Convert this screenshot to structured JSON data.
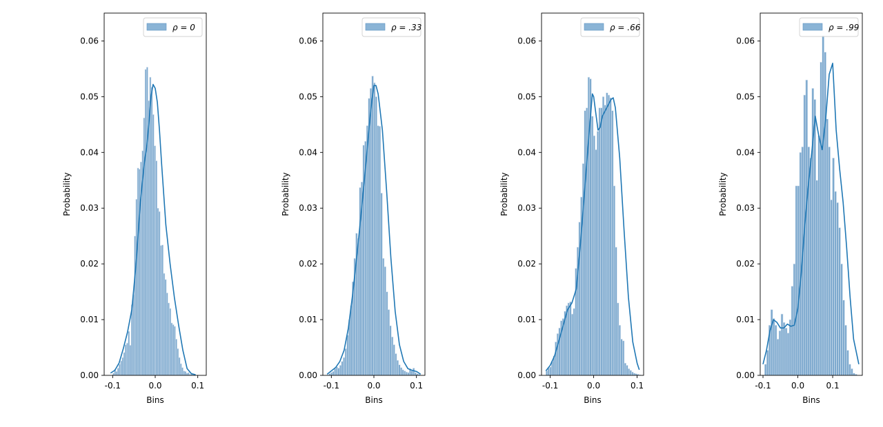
{
  "colors": {
    "bar_fill": "#5d93c2",
    "bar_edge": "#dbe7f2",
    "kde": "#1f77b4",
    "legend_patch": "#8ab4d6",
    "axes": "#000000"
  },
  "chart_data": [
    {
      "type": "bar",
      "legend": "ρ = 0",
      "xlabel": "Bins",
      "ylabel": "Probability",
      "xlim": [
        -0.12,
        0.12
      ],
      "ylim": [
        0,
        0.065
      ],
      "xticks": [
        "-0.1",
        "0.0",
        "0.1"
      ],
      "xtick_values": [
        -0.1,
        0.0,
        0.1
      ],
      "yticks": [
        "0.00",
        "0.01",
        "0.02",
        "0.03",
        "0.04",
        "0.05",
        "0.06"
      ],
      "ytick_values": [
        0,
        0.01,
        0.02,
        0.03,
        0.04,
        0.05,
        0.06
      ],
      "bar_width": 0.0036,
      "bin_centers": [
        -0.098,
        -0.0944,
        -0.0908,
        -0.0872,
        -0.0836,
        -0.08,
        -0.0764,
        -0.0728,
        -0.0692,
        -0.0656,
        -0.062,
        -0.0584,
        -0.0548,
        -0.0512,
        -0.0476,
        -0.044,
        -0.0404,
        -0.0368,
        -0.0332,
        -0.0296,
        -0.026,
        -0.0224,
        -0.0188,
        -0.0152,
        -0.0116,
        -0.008,
        -0.0044,
        -0.0008,
        0.0028,
        0.0064,
        0.01,
        0.0136,
        0.0172,
        0.0208,
        0.0244,
        0.028,
        0.0316,
        0.0352,
        0.0388,
        0.0424,
        0.046,
        0.0496,
        0.0532,
        0.0568,
        0.0604,
        0.064,
        0.0676,
        0.0712,
        0.0748,
        0.0784,
        0.082,
        0.0856,
        0.0892
      ],
      "values": [
        0.0004,
        0.0011,
        0.0007,
        0.0013,
        0.002,
        0.0026,
        0.0032,
        0.0041,
        0.0055,
        0.0058,
        0.0079,
        0.0054,
        0.0127,
        0.0145,
        0.025,
        0.0316,
        0.0372,
        0.037,
        0.0383,
        0.0403,
        0.0462,
        0.0549,
        0.0553,
        0.0493,
        0.0535,
        0.0517,
        0.0468,
        0.0412,
        0.0385,
        0.03,
        0.0294,
        0.0233,
        0.0234,
        0.0183,
        0.0172,
        0.0148,
        0.013,
        0.012,
        0.0094,
        0.0091,
        0.0088,
        0.0065,
        0.0048,
        0.0032,
        0.0021,
        0.0014,
        0.0008,
        0.0007,
        0.0004,
        0.0005,
        0.0002,
        0.0002,
        0.0001
      ],
      "kde_x": [
        -0.105,
        -0.095,
        -0.085,
        -0.075,
        -0.065,
        -0.055,
        -0.045,
        -0.035,
        -0.025,
        -0.02,
        -0.015,
        -0.01,
        -0.005,
        0.0,
        0.005,
        0.01,
        0.015,
        0.025,
        0.035,
        0.045,
        0.055,
        0.065,
        0.075,
        0.085,
        0.095
      ],
      "kde_y": [
        0.0004,
        0.0009,
        0.0022,
        0.0048,
        0.0078,
        0.0118,
        0.02,
        0.031,
        0.0385,
        0.041,
        0.045,
        0.05,
        0.0522,
        0.0515,
        0.049,
        0.044,
        0.038,
        0.027,
        0.02,
        0.014,
        0.009,
        0.0045,
        0.0012,
        0.0003,
        0.0001
      ]
    },
    {
      "type": "bar",
      "legend": "ρ = .33",
      "xlabel": "Bins",
      "ylabel": "Probability",
      "xlim": [
        -0.12,
        0.12
      ],
      "ylim": [
        0,
        0.065
      ],
      "xticks": [
        "-0.1",
        "0.0",
        "0.1"
      ],
      "xtick_values": [
        -0.1,
        0.0,
        0.1
      ],
      "yticks": [
        "0.00",
        "0.01",
        "0.02",
        "0.03",
        "0.04",
        "0.05",
        "0.06"
      ],
      "ytick_values": [
        0,
        0.01,
        0.02,
        0.03,
        0.04,
        0.05,
        0.06
      ],
      "bar_width": 0.0042,
      "bin_centers": [
        -0.108,
        -0.1038,
        -0.0996,
        -0.0954,
        -0.0912,
        -0.087,
        -0.0828,
        -0.0786,
        -0.0744,
        -0.0702,
        -0.066,
        -0.0618,
        -0.0576,
        -0.0534,
        -0.0492,
        -0.045,
        -0.0408,
        -0.0366,
        -0.0324,
        -0.0282,
        -0.024,
        -0.0198,
        -0.0156,
        -0.0114,
        -0.0072,
        -0.003,
        0.0012,
        0.0054,
        0.0096,
        0.0138,
        0.018,
        0.0222,
        0.0264,
        0.0306,
        0.0348,
        0.039,
        0.0432,
        0.0474,
        0.0516,
        0.0558,
        0.06,
        0.0642,
        0.0684,
        0.0726,
        0.0768,
        0.081,
        0.0852,
        0.0894,
        0.0936,
        0.0978,
        0.102,
        0.1062
      ],
      "values": [
        0.0001,
        0.0003,
        0.0005,
        0.0007,
        0.0012,
        0.0015,
        0.0013,
        0.0018,
        0.0025,
        0.0032,
        0.0048,
        0.0072,
        0.01,
        0.0125,
        0.0168,
        0.021,
        0.0255,
        0.0246,
        0.0337,
        0.0347,
        0.0413,
        0.042,
        0.0448,
        0.0497,
        0.0515,
        0.0537,
        0.0525,
        0.05,
        0.0448,
        0.0447,
        0.0327,
        0.021,
        0.0195,
        0.015,
        0.0118,
        0.0089,
        0.0069,
        0.0055,
        0.0039,
        0.0027,
        0.0019,
        0.0014,
        0.001,
        0.0008,
        0.0006,
        0.0005,
        0.0012,
        0.0008,
        0.0013,
        0.0005,
        0.0003,
        0.0002
      ],
      "kde_x": [
        -0.11,
        -0.1,
        -0.09,
        -0.08,
        -0.07,
        -0.06,
        -0.05,
        -0.04,
        -0.03,
        -0.02,
        -0.01,
        -0.005,
        0.0,
        0.005,
        0.01,
        0.02,
        0.03,
        0.04,
        0.05,
        0.06,
        0.07,
        0.08,
        0.09,
        0.1,
        0.11
      ],
      "kde_y": [
        0.0002,
        0.0008,
        0.0014,
        0.0025,
        0.0045,
        0.0085,
        0.0145,
        0.0215,
        0.029,
        0.037,
        0.0455,
        0.0492,
        0.052,
        0.052,
        0.0505,
        0.044,
        0.033,
        0.021,
        0.0115,
        0.0055,
        0.0025,
        0.0012,
        0.0009,
        0.0007,
        0.0002
      ]
    },
    {
      "type": "bar",
      "legend": "ρ = .66",
      "xlabel": "Bins",
      "ylabel": "Probability",
      "xlim": [
        -0.12,
        0.115
      ],
      "ylim": [
        0,
        0.065
      ],
      "xticks": [
        "-0.1",
        "0.0",
        "0.1"
      ],
      "xtick_values": [
        -0.1,
        0.0,
        0.1
      ],
      "yticks": [
        "0.00",
        "0.01",
        "0.02",
        "0.03",
        "0.04",
        "0.05",
        "0.06"
      ],
      "ytick_values": [
        0,
        0.01,
        0.02,
        0.03,
        0.04,
        0.05,
        0.06
      ],
      "bar_width": 0.0042,
      "bin_centers": [
        -0.108,
        -0.1038,
        -0.0996,
        -0.0954,
        -0.0912,
        -0.087,
        -0.0828,
        -0.0786,
        -0.0744,
        -0.0702,
        -0.066,
        -0.0618,
        -0.0576,
        -0.0534,
        -0.0492,
        -0.045,
        -0.0408,
        -0.0366,
        -0.0324,
        -0.0282,
        -0.024,
        -0.0198,
        -0.0156,
        -0.0114,
        -0.0072,
        -0.003,
        0.0012,
        0.0054,
        0.0096,
        0.0138,
        0.018,
        0.0222,
        0.0264,
        0.0306,
        0.0348,
        0.039,
        0.0432,
        0.0474,
        0.0516,
        0.0558,
        0.06,
        0.0642,
        0.0684,
        0.0726,
        0.0768,
        0.081,
        0.0852,
        0.0894,
        0.0936,
        0.0978,
        0.102,
        0.1062
      ],
      "values": [
        0.0008,
        0.0013,
        0.0015,
        0.0025,
        0.0035,
        0.006,
        0.0075,
        0.0085,
        0.0098,
        0.0102,
        0.0115,
        0.0125,
        0.013,
        0.0132,
        0.011,
        0.012,
        0.0192,
        0.023,
        0.0275,
        0.032,
        0.038,
        0.0475,
        0.048,
        0.0535,
        0.0532,
        0.0465,
        0.043,
        0.0405,
        0.0438,
        0.048,
        0.048,
        0.05,
        0.0485,
        0.0507,
        0.0503,
        0.0498,
        0.0475,
        0.034,
        0.023,
        0.013,
        0.009,
        0.0065,
        0.0062,
        0.0022,
        0.0018,
        0.0012,
        0.0009,
        0.0006,
        0.0004,
        0.0003,
        0.0002,
        0.0001
      ],
      "kde_x": [
        -0.11,
        -0.1,
        -0.09,
        -0.08,
        -0.07,
        -0.06,
        -0.05,
        -0.04,
        -0.03,
        -0.02,
        -0.01,
        -0.003,
        0.0,
        0.005,
        0.01,
        0.015,
        0.02,
        0.03,
        0.04,
        0.045,
        0.05,
        0.06,
        0.07,
        0.08,
        0.09,
        0.1,
        0.105
      ],
      "kde_y": [
        0.0008,
        0.0018,
        0.0035,
        0.0062,
        0.009,
        0.0118,
        0.013,
        0.0155,
        0.024,
        0.034,
        0.044,
        0.0505,
        0.05,
        0.047,
        0.044,
        0.0445,
        0.0465,
        0.048,
        0.0495,
        0.0498,
        0.048,
        0.039,
        0.026,
        0.014,
        0.006,
        0.0022,
        0.001
      ]
    },
    {
      "type": "bar",
      "legend": "ρ = .99",
      "xlabel": "Bins",
      "ylabel": "Probability",
      "xlim": [
        -0.108,
        0.185
      ],
      "ylim": [
        0,
        0.065
      ],
      "xticks": [
        "-0.1",
        "0.0",
        "0.1"
      ],
      "xtick_values": [
        -0.1,
        0.0,
        0.1
      ],
      "yticks": [
        "0.00",
        "0.01",
        "0.02",
        "0.03",
        "0.04",
        "0.05",
        "0.06"
      ],
      "ytick_values": [
        0,
        0.01,
        0.02,
        0.03,
        0.04,
        0.05,
        0.06
      ],
      "bar_width": 0.0059,
      "bin_centers": [
        -0.0927,
        -0.0868,
        -0.0809,
        -0.075,
        -0.0691,
        -0.0632,
        -0.0573,
        -0.0514,
        -0.0455,
        -0.0396,
        -0.0337,
        -0.0278,
        -0.0219,
        -0.016,
        -0.0101,
        -0.0042,
        0.0017,
        0.0076,
        0.0135,
        0.0194,
        0.0253,
        0.0312,
        0.0371,
        0.043,
        0.0489,
        0.0548,
        0.0607,
        0.0666,
        0.0725,
        0.0784,
        0.0843,
        0.0902,
        0.0961,
        0.102,
        0.1079,
        0.1138,
        0.1197,
        0.1256,
        0.1315,
        0.1374,
        0.1433,
        0.1492,
        0.1551,
        0.161,
        0.1669
      ],
      "values": [
        0.002,
        0.0045,
        0.009,
        0.0118,
        0.0102,
        0.009,
        0.0065,
        0.008,
        0.011,
        0.0095,
        0.0085,
        0.0076,
        0.01,
        0.016,
        0.02,
        0.034,
        0.034,
        0.04,
        0.041,
        0.0503,
        0.053,
        0.041,
        0.039,
        0.0515,
        0.0495,
        0.035,
        0.043,
        0.0562,
        0.061,
        0.058,
        0.046,
        0.041,
        0.0315,
        0.039,
        0.033,
        0.031,
        0.0265,
        0.02,
        0.0135,
        0.009,
        0.0045,
        0.002,
        0.0012,
        0.0004,
        0.0002
      ],
      "kde_x": [
        -0.1,
        -0.09,
        -0.08,
        -0.07,
        -0.06,
        -0.05,
        -0.04,
        -0.03,
        -0.02,
        -0.01,
        0.0,
        0.01,
        0.02,
        0.03,
        0.04,
        0.05,
        0.06,
        0.07,
        0.08,
        0.09,
        0.1,
        0.11,
        0.12,
        0.13,
        0.14,
        0.15,
        0.16,
        0.175
      ],
      "kde_y": [
        0.002,
        0.0045,
        0.008,
        0.01,
        0.0095,
        0.0085,
        0.0085,
        0.0092,
        0.0088,
        0.009,
        0.012,
        0.0185,
        0.027,
        0.034,
        0.04,
        0.0465,
        0.043,
        0.0405,
        0.046,
        0.054,
        0.056,
        0.044,
        0.037,
        0.031,
        0.023,
        0.014,
        0.0065,
        0.002
      ]
    }
  ]
}
